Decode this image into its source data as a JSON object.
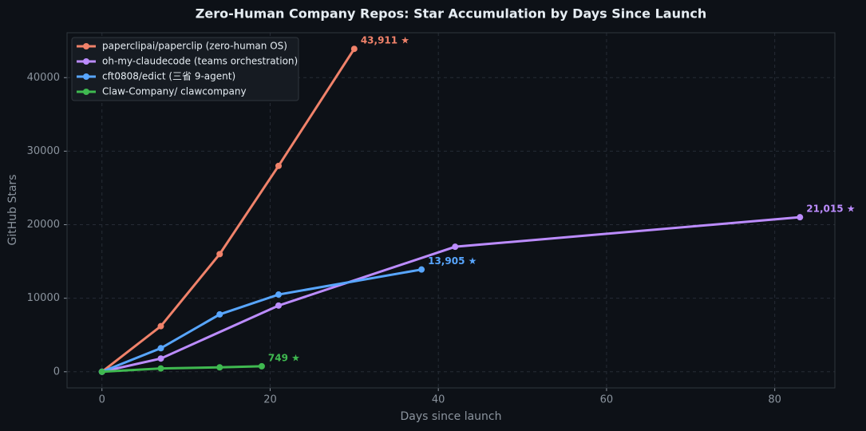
{
  "chart_data": {
    "type": "line",
    "title": "Zero-Human Company Repos: Star Accumulation by Days Since Launch",
    "x_label": "Days since launch",
    "y_label": "GitHub Stars",
    "xlim": [
      -4.15,
      87.15
    ],
    "xticks": [
      0,
      20,
      40,
      60,
      80
    ],
    "ylim": [
      -2195.55,
      46106.55
    ],
    "yticks": [
      0,
      10000,
      20000,
      30000,
      40000
    ],
    "grid": true,
    "legend": "upper left",
    "series": [
      {
        "name": "paperclipai/paperclip (zero-human OS)",
        "color": "#f0826a",
        "x": [
          0,
          7,
          14,
          21,
          30
        ],
        "values": [
          0,
          6200,
          16000,
          28000,
          43911
        ],
        "value_labels": [
          null,
          null,
          null,
          null,
          "43,911 ★"
        ]
      },
      {
        "name": "oh-my-claudecode (teams orchestration)",
        "color": "#bc8cff",
        "x": [
          0,
          7,
          21,
          42,
          83
        ],
        "values": [
          0,
          1800,
          9000,
          17000,
          21015
        ],
        "value_labels": [
          null,
          null,
          null,
          null,
          "21,015 ★"
        ]
      },
      {
        "name": "cft0808/edict (三省 9-agent)",
        "color": "#58a6ff",
        "x": [
          0,
          7,
          14,
          21,
          38
        ],
        "values": [
          0,
          3200,
          7800,
          10500,
          13905
        ],
        "value_labels": [
          null,
          null,
          null,
          null,
          "13,905 ★"
        ]
      },
      {
        "name": "Claw-Company/ clawcompany",
        "color": "#3fb950",
        "x": [
          0,
          7,
          14,
          19
        ],
        "values": [
          0,
          450,
          600,
          749
        ],
        "value_labels": [
          null,
          null,
          null,
          "749 ★"
        ]
      }
    ]
  }
}
